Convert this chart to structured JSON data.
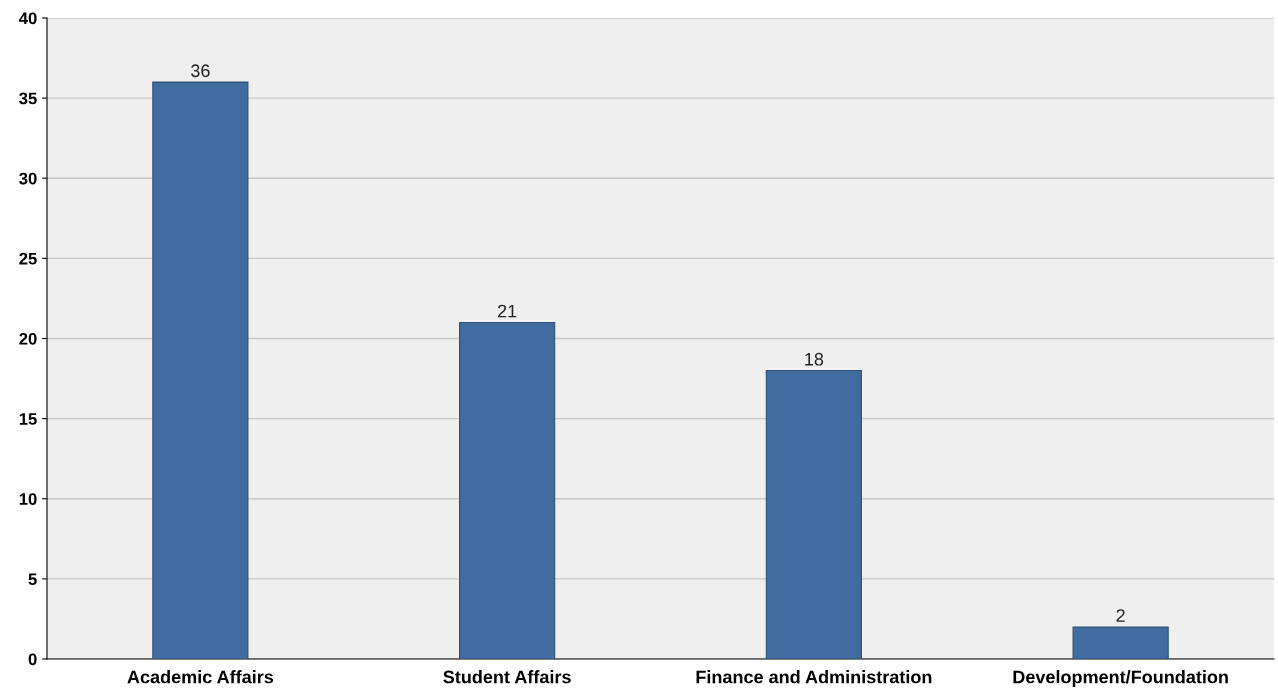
{
  "chart_data": {
    "type": "bar",
    "categories": [
      "Academic Affairs",
      "Student Affairs",
      "Finance and Administration",
      "Development/Foundation"
    ],
    "values": [
      36,
      21,
      18,
      2
    ],
    "color": "#416c9f",
    "ylim": [
      0,
      40
    ],
    "yticks": [
      0,
      5,
      10,
      15,
      20,
      25,
      30,
      35,
      40
    ],
    "grid": "y",
    "data_labels": true,
    "legend": false
  }
}
